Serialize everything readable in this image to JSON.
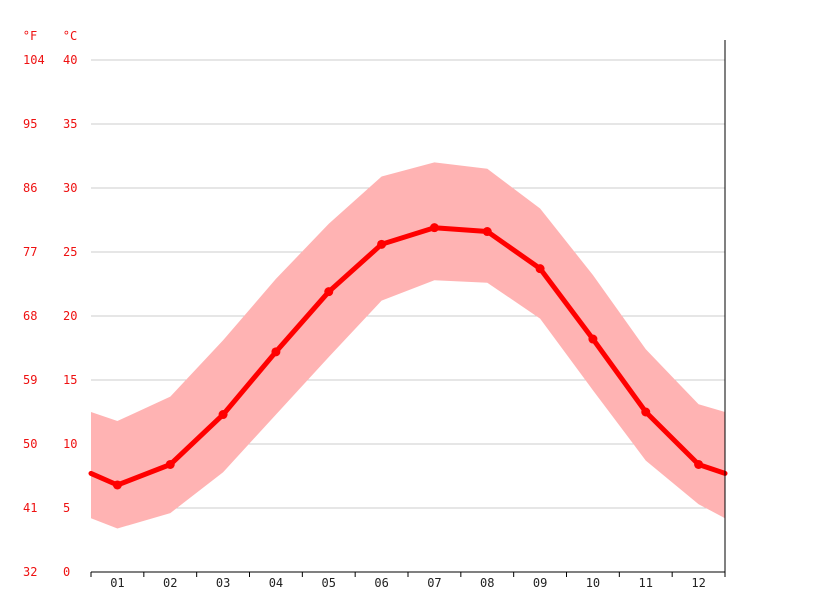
{
  "chart_data": {
    "type": "line",
    "units": {
      "left": "°F",
      "right": "°C"
    },
    "categories": [
      "01",
      "02",
      "03",
      "04",
      "05",
      "06",
      "07",
      "08",
      "09",
      "10",
      "11",
      "12"
    ],
    "y_ticks_c": [
      "40",
      "35",
      "30",
      "25",
      "20",
      "15",
      "10",
      "5",
      "0"
    ],
    "y_ticks_f": [
      "104",
      "95",
      "86",
      "77",
      "68",
      "59",
      "50",
      "41",
      "32"
    ],
    "ylim": [
      0,
      40
    ],
    "grid": true,
    "series": [
      {
        "role": "mean",
        "values": [
          6.8,
          8.4,
          12.3,
          17.2,
          21.9,
          25.6,
          26.9,
          26.6,
          23.7,
          18.2,
          12.5,
          8.4
        ]
      },
      {
        "role": "max",
        "values": [
          11.8,
          13.7,
          18.1,
          22.9,
          27.2,
          30.9,
          32.0,
          31.5,
          28.4,
          23.2,
          17.4,
          13.1
        ]
      },
      {
        "role": "min",
        "values": [
          3.4,
          4.6,
          7.8,
          12.3,
          16.8,
          21.2,
          22.8,
          22.6,
          19.8,
          14.2,
          8.7,
          5.3
        ]
      }
    ],
    "edge_values": {
      "start": {
        "mean": 7.7,
        "max": 12.5,
        "min": 4.2
      },
      "end": {
        "mean": 7.7,
        "max": 12.5,
        "min": 4.2
      }
    },
    "colors": {
      "mean_line": "#ff0000",
      "band": "#ffb3b3",
      "grid": "#cccccc",
      "axis": "#000000",
      "tick_text": "#ee1111",
      "x_text": "#222222"
    }
  }
}
